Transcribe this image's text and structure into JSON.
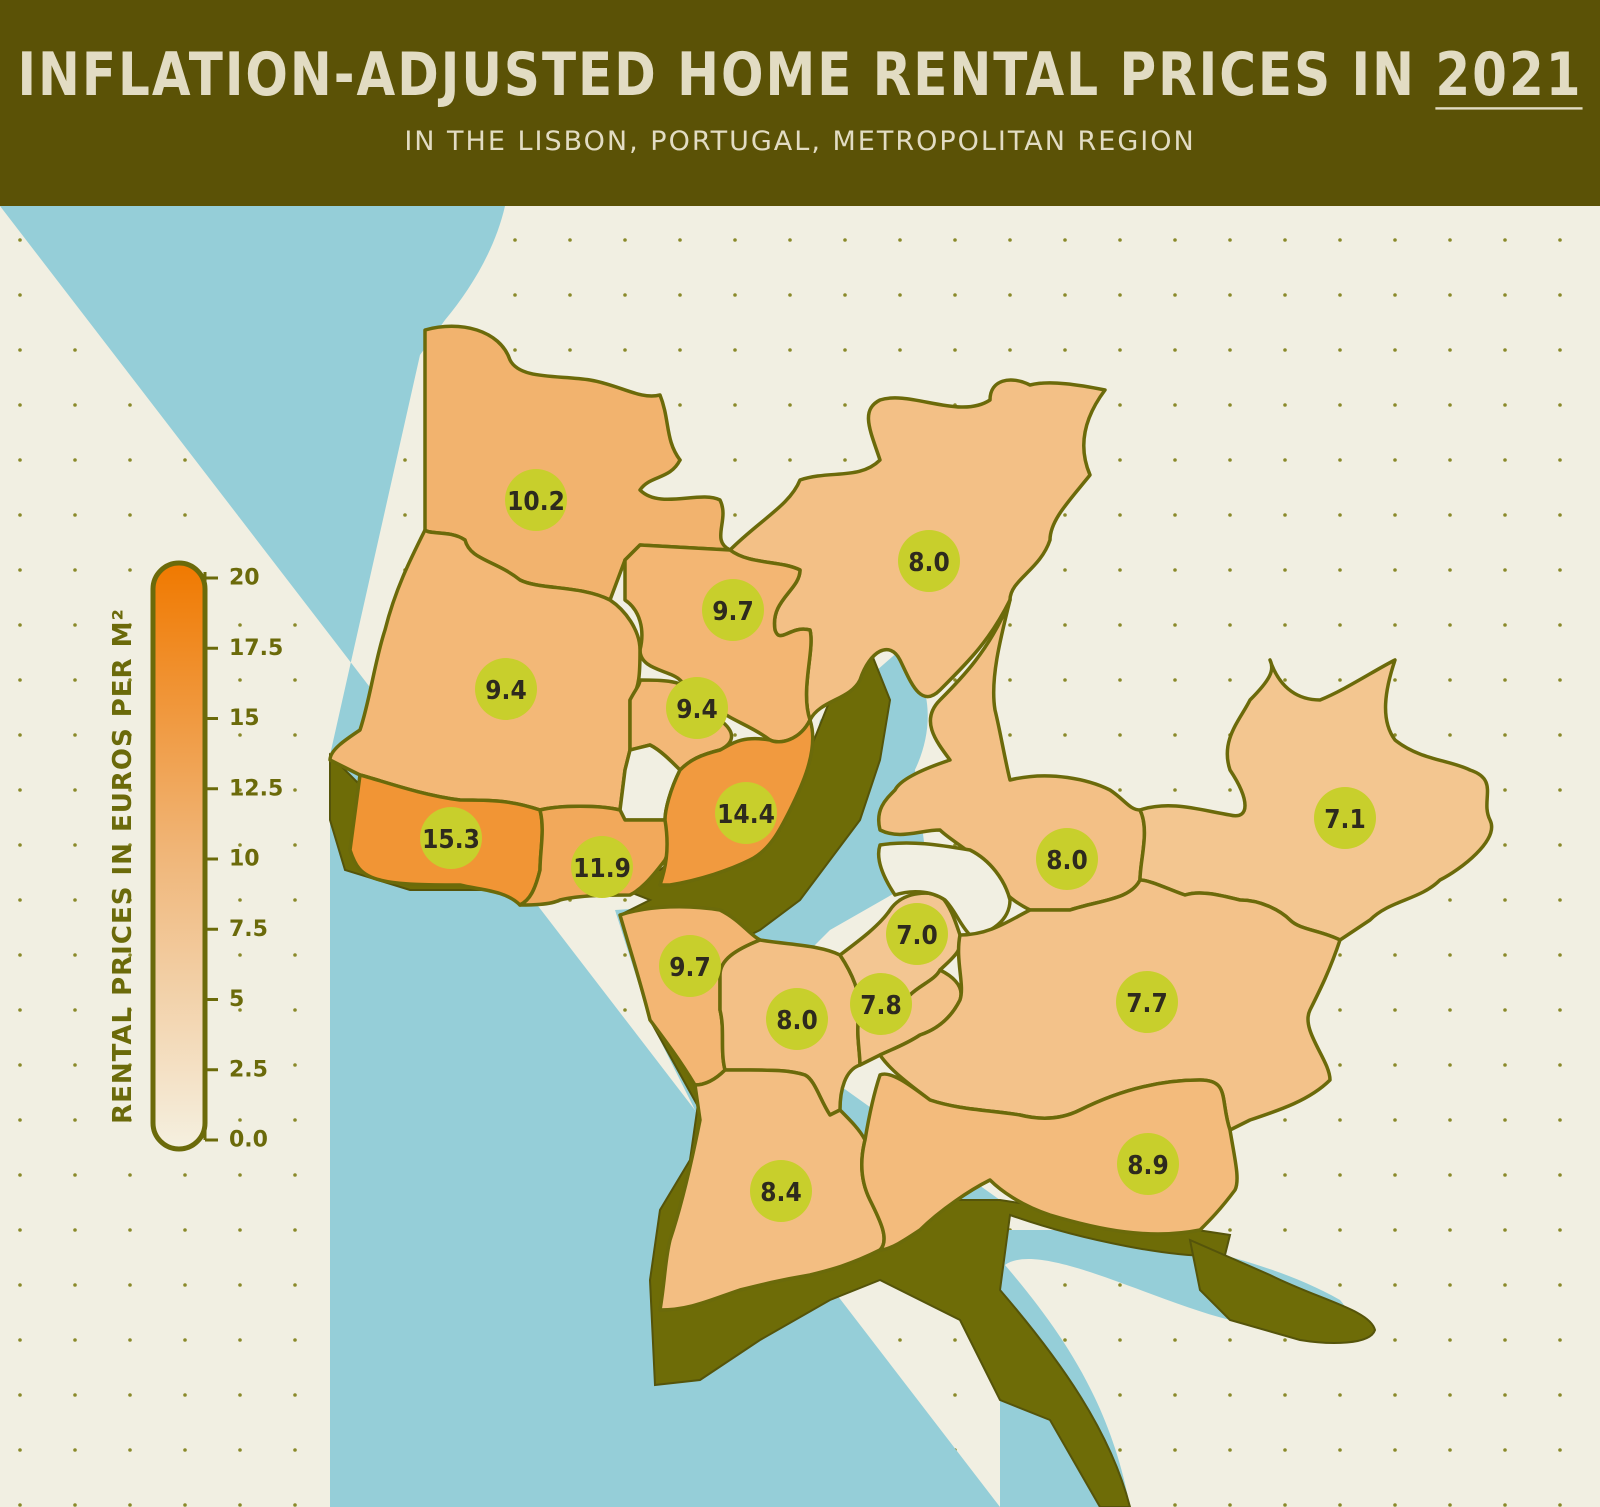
{
  "header": {
    "title": "INFLATION-ADJUSTED HOME RENTAL PRICES IN",
    "title_year": "2021",
    "subtitle": "IN THE LISBON, PORTUGAL, METROPOLITAN REGION"
  },
  "colors": {
    "header_bg": "#5b5206",
    "ocean": "#95ced8",
    "land_outside": "#f1efe2",
    "extrusion": "#6e6c07",
    "outline": "#6b6a0a",
    "badge": "#c8cf2c",
    "scale_min": "#f5f0e0",
    "scale_max": "#f07900"
  },
  "legend": {
    "title": "RENTAL PRICES IN EUROS PER M²",
    "min": 0,
    "max": 20,
    "ticks": [
      "20",
      "17.5",
      "15",
      "12.5",
      "10",
      "7.5",
      "5",
      "2.5",
      "0.0"
    ]
  },
  "chart_data": {
    "type": "choropleth",
    "unit": "euros per m²",
    "scale_range": [
      0,
      20
    ],
    "regions": [
      {
        "id": "mafra",
        "value": 10.2,
        "label": "10.2"
      },
      {
        "id": "vila-franca",
        "value": 8.0,
        "label": "8.0"
      },
      {
        "id": "loures",
        "value": 9.7,
        "label": "9.7"
      },
      {
        "id": "sintra",
        "value": 9.4,
        "label": "9.4"
      },
      {
        "id": "odivelas",
        "value": 9.4,
        "label": "9.4"
      },
      {
        "id": "cascais",
        "value": 15.3,
        "label": "15.3"
      },
      {
        "id": "oeiras",
        "value": 11.9,
        "label": "11.9"
      },
      {
        "id": "lisboa",
        "value": 14.4,
        "label": "14.4"
      },
      {
        "id": "alcochete",
        "value": 8.0,
        "label": "8.0"
      },
      {
        "id": "montijo",
        "value": 7.1,
        "label": "7.1"
      },
      {
        "id": "almada",
        "value": 9.7,
        "label": "9.7"
      },
      {
        "id": "seixal",
        "value": 8.0,
        "label": "8.0"
      },
      {
        "id": "barreiro",
        "value": 7.0,
        "label": "7.0"
      },
      {
        "id": "moita",
        "value": 7.8,
        "label": "7.8"
      },
      {
        "id": "palmela",
        "value": 7.7,
        "label": "7.7"
      },
      {
        "id": "sesimbra",
        "value": 8.4,
        "label": "8.4"
      },
      {
        "id": "setubal",
        "value": 8.9,
        "label": "8.9"
      }
    ]
  }
}
